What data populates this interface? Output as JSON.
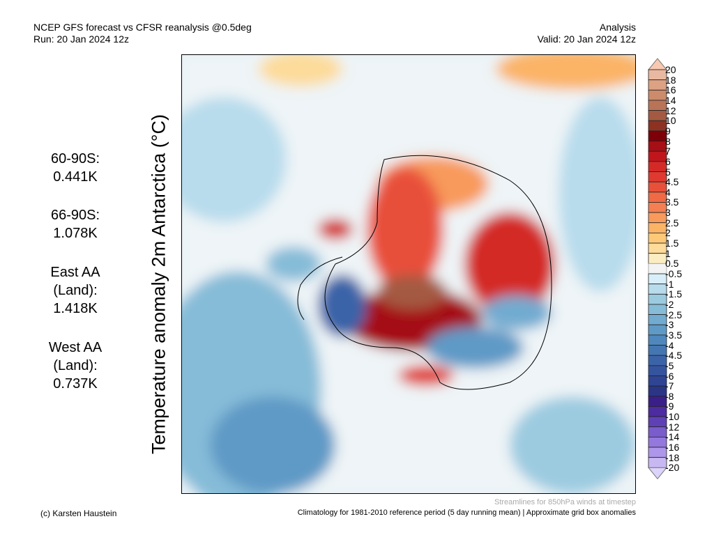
{
  "header": {
    "title": "NCEP GFS forecast vs CFSR reanalysis @0.5deg",
    "run": "Run: 20 Jan 2024 12z",
    "mode": "Analysis",
    "valid": "Valid: 20 Jan 2024 12z"
  },
  "y_label": "Temperature anomaly 2m Antarctica (°C)",
  "stats": [
    {
      "label": "60-90S:",
      "value": "0.441K"
    },
    {
      "label": "66-90S:",
      "value": "1.078K"
    },
    {
      "label": "East AA (Land):",
      "value": "1.418K"
    },
    {
      "label": "West AA (Land):",
      "value": "0.737K"
    }
  ],
  "colorbar": {
    "labels": [
      "20",
      "18",
      "16",
      "14",
      "12",
      "10",
      "9",
      "8",
      "7",
      "6",
      "5",
      "4.5",
      "4",
      "3.5",
      "3",
      "2.5",
      "2",
      "1.5",
      "1",
      "0.5",
      "-0.5",
      "-1",
      "-1.5",
      "-2",
      "-2.5",
      "-3",
      "-3.5",
      "-4",
      "-4.5",
      "-5",
      "-6",
      "-7",
      "-8",
      "-9",
      "-10",
      "-12",
      "-14",
      "-16",
      "-18",
      "-20"
    ],
    "colors": [
      "#e9b8a0",
      "#dca283",
      "#cc8b6b",
      "#b97458",
      "#a45a42",
      "#8d3222",
      "#7d0008",
      "#a50f15",
      "#c0161b",
      "#d42a27",
      "#e03a30",
      "#e8503a",
      "#ef6a45",
      "#f47f52",
      "#f89a5c",
      "#fbb366",
      "#fdc878",
      "#fddb9a",
      "#fbecc2",
      "#f3f3f3",
      "#d8eef8",
      "#b8dcec",
      "#9ccbe0",
      "#86bcd8",
      "#72abd0",
      "#5f9ac6",
      "#4f88bd",
      "#4476b2",
      "#3b64a8",
      "#35549e",
      "#2f4493",
      "#2a3586",
      "#3a1f8a",
      "#4d2ba0",
      "#6040b5",
      "#7a5ccc",
      "#9478dd",
      "#ae96ea",
      "#c8b8f2"
    ],
    "over_color": "#f8c8b0",
    "under_color": "#dcd4fa"
  },
  "footer": {
    "credit": "(c) Karsten Haustein",
    "streamlines": "Streamlines for 850hPa winds at timestep",
    "climatology": "Climatology for 1981-2010 reference period (5 day running mean) | Approximate grid box anomalies"
  }
}
